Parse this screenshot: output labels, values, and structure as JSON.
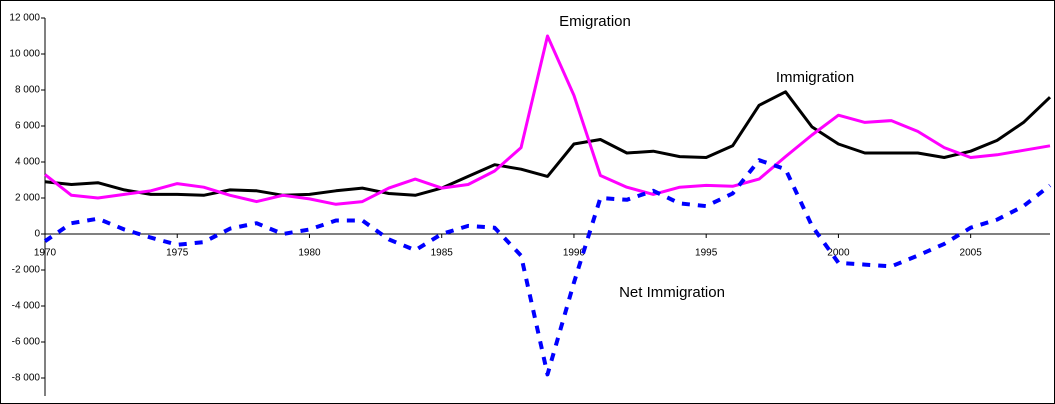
{
  "chart_data": {
    "type": "line",
    "x": [
      1970,
      1971,
      1972,
      1973,
      1974,
      1975,
      1976,
      1977,
      1978,
      1979,
      1980,
      1981,
      1982,
      1983,
      1984,
      1985,
      1986,
      1987,
      1988,
      1989,
      1990,
      1991,
      1992,
      1993,
      1994,
      1995,
      1996,
      1997,
      1998,
      1999,
      2000,
      2001,
      2002,
      2003,
      2004,
      2005,
      2006,
      2007,
      2008
    ],
    "series": [
      {
        "name": "Immigration",
        "color": "#000000",
        "dashed": false,
        "values": [
          2900,
          2750,
          2850,
          2450,
          2200,
          2200,
          2150,
          2450,
          2400,
          2150,
          2200,
          2400,
          2550,
          2250,
          2150,
          2550,
          3200,
          3850,
          3600,
          3200,
          5000,
          5250,
          4500,
          4600,
          4300,
          4250,
          4900,
          7150,
          7900,
          5950,
          5000,
          4500,
          4500,
          4500,
          4250,
          4600,
          5200,
          6200,
          7600
        ]
      },
      {
        "name": "Emigration",
        "color": "#ff00ff",
        "dashed": false,
        "values": [
          3300,
          2150,
          2000,
          2200,
          2400,
          2800,
          2600,
          2150,
          1800,
          2150,
          1950,
          1650,
          1800,
          2550,
          3050,
          2550,
          2750,
          3500,
          4800,
          11000,
          7700,
          3250,
          2600,
          2200,
          2600,
          2700,
          2650,
          3050,
          4300,
          5500,
          6600,
          6200,
          6300,
          5700,
          4800,
          4250,
          4400,
          4650,
          4900
        ]
      },
      {
        "name": "Net Immigration",
        "color": "#0000ff",
        "dashed": true,
        "values": [
          -400,
          600,
          850,
          250,
          -200,
          -600,
          -450,
          300,
          600,
          0,
          250,
          750,
          750,
          -300,
          -900,
          0,
          450,
          350,
          -1200,
          -7800,
          -2700,
          2000,
          1900,
          2400,
          1700,
          1550,
          2250,
          4100,
          3600,
          450,
          -1600,
          -1700,
          -1800,
          -1200,
          -550,
          350,
          800,
          1550,
          2700
        ]
      }
    ],
    "xlim": [
      1970,
      2008
    ],
    "xticks": [
      1970,
      1975,
      1980,
      1985,
      1990,
      1995,
      2000,
      2005
    ],
    "ylim": [
      -9000,
      12000
    ],
    "yticks": [
      {
        "value": -8000,
        "label": "-8 000"
      },
      {
        "value": -6000,
        "label": "-6 000"
      },
      {
        "value": -4000,
        "label": "-4 000"
      },
      {
        "value": -2000,
        "label": "-2 000"
      },
      0,
      {
        "value": 2000,
        "label": "2 000"
      },
      {
        "value": 4000,
        "label": "4 000"
      },
      {
        "value": 6000,
        "label": "6 000"
      },
      {
        "value": 8000,
        "label": "8 000"
      },
      {
        "value": 10000,
        "label": "10 000"
      },
      {
        "value": 12000,
        "label": "12 000"
      }
    ],
    "grid": false
  }
}
